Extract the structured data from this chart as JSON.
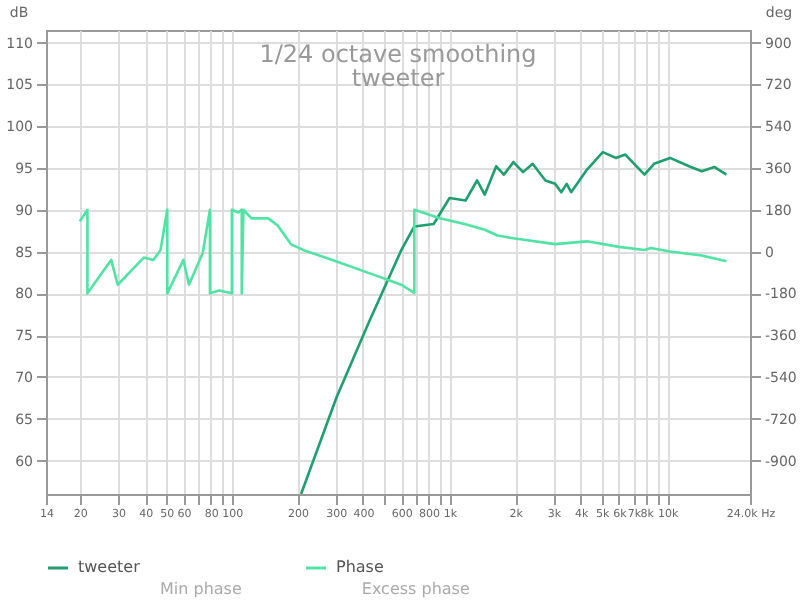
{
  "chart_data": {
    "type": "line",
    "title": "1/24 octave smoothing",
    "subtitle": "tweeter",
    "ylabel": "dB",
    "y2label": "deg",
    "log": "x",
    "grid": true,
    "legend": "bottom",
    "xlim": [
      14,
      24000
    ],
    "xticks": [
      14,
      20,
      30,
      40,
      50,
      60,
      {
        "value": 70,
        "label": null
      },
      80,
      {
        "value": 90,
        "label": null
      },
      100,
      200,
      300,
      400,
      {
        "value": 500,
        "label": null
      },
      600,
      {
        "value": 700,
        "label": null
      },
      800,
      {
        "value": 900,
        "label": null
      },
      {
        "value": 1000,
        "label": "1k"
      },
      {
        "value": 2000,
        "label": "2k"
      },
      {
        "value": 3000,
        "label": "3k"
      },
      {
        "value": 4000,
        "label": "4k"
      },
      {
        "value": 5000,
        "label": "5k"
      },
      {
        "value": 6000,
        "label": "6k"
      },
      {
        "value": 7000,
        "label": "7k"
      },
      {
        "value": 8000,
        "label": "8k"
      },
      {
        "value": 9000,
        "label": null
      },
      {
        "value": 10000,
        "label": "10k"
      },
      {
        "value": 24000,
        "label": "24.0k Hz"
      }
    ],
    "ylim": [
      56,
      111.5
    ],
    "yticks": [
      60,
      65,
      70,
      75,
      80,
      85,
      90,
      95,
      100,
      105,
      110
    ],
    "y2lim": [
      -1044,
      954
    ],
    "y2ticks": [
      -900,
      -720,
      -540,
      -360,
      -180,
      0,
      180,
      360,
      540,
      720,
      900
    ],
    "series": [
      {
        "name": "tweeter",
        "color": "#1f9e6e",
        "x": [
          208,
          303,
          427,
          601,
          689,
          845,
          1000,
          1184,
          1338,
          1450,
          1638,
          1776,
          1966,
          2176,
          2408,
          2756,
          3054,
          3260,
          3450,
          3620,
          4280,
          5060,
          5800,
          6420,
          7860,
          8700,
          10300,
          12600,
          14400,
          16500,
          18700
        ],
        "values": [
          56,
          67.6,
          76.6,
          85.2,
          88,
          88.3,
          91.4,
          91.1,
          93.5,
          91.8,
          95.2,
          94.2,
          95.7,
          94.5,
          95.5,
          93.5,
          93.1,
          92.1,
          93.1,
          92.1,
          94.8,
          96.9,
          96.2,
          96.6,
          94.2,
          95.5,
          96.2,
          95.2,
          94.6,
          95.1,
          94.2
        ]
      },
      {
        "name": "Phase",
        "color": "#50e3a4",
        "axis": "y2",
        "x": [
          20,
          21.7,
          21.7,
          27.9,
          29.9,
          39.4,
          43.6,
          47,
          50.5,
          50.5,
          59.9,
          63.5,
          73.5,
          79.3,
          79.3,
          87.4,
          100,
          100,
          107,
          111,
          111,
          113,
          123,
          147,
          162,
          187,
          214,
          303,
          427,
          601,
          689,
          689,
          903,
          1184,
          1450,
          1661,
          1966,
          3054,
          4280,
          6000,
          7860,
          8400,
          10300,
          14400,
          18700
        ],
        "values": [
          130,
          180,
          -180,
          -36,
          -143,
          -26,
          -36,
          6,
          180,
          -180,
          -36,
          -143,
          -6,
          180,
          -180,
          -168,
          -180,
          180,
          168,
          180,
          -180,
          180,
          143,
          143,
          113,
          31,
          6,
          -43,
          -93,
          -143,
          -178,
          180,
          143,
          118,
          94,
          69,
          57,
          32,
          44,
          20,
          7,
          15,
          0,
          -17,
          -42
        ]
      }
    ],
    "annotations": [
      "Min phase",
      "Excess phase"
    ]
  }
}
